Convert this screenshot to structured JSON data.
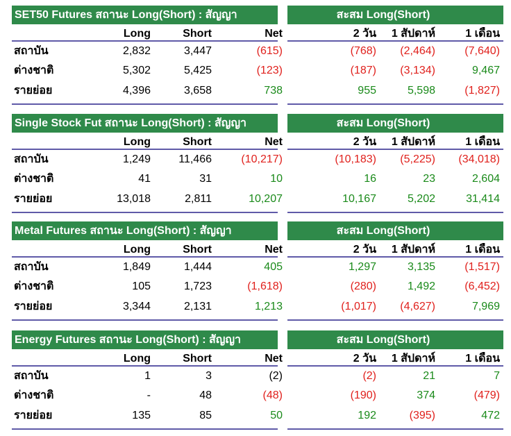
{
  "columns": {
    "long": "Long",
    "short": "Short",
    "net": "Net",
    "w2": "2 วัน",
    "w1": "1 สัปดาห์",
    "m1": "1 เดือน"
  },
  "accum_title": "สะสม Long(Short)",
  "sections": [
    {
      "title": "SET50 Futures สถานะ Long(Short) : สัญญา",
      "rows": [
        {
          "label": "สถาบัน",
          "long": "2,832",
          "short": "3,447",
          "net": "(615)",
          "w2": "(768)",
          "w1": "(2,464)",
          "m1": "(7,640)"
        },
        {
          "label": "ต่างชาติ",
          "long": "5,302",
          "short": "5,425",
          "net": "(123)",
          "w2": "(187)",
          "w1": "(3,134)",
          "m1": "9,467"
        },
        {
          "label": "รายย่อย",
          "long": "4,396",
          "short": "3,658",
          "net": "738",
          "w2": "955",
          "w1": "5,598",
          "m1": "(1,827)"
        }
      ]
    },
    {
      "title": "Single Stock Fut สถานะ Long(Short) : สัญญา",
      "rows": [
        {
          "label": "สถาบัน",
          "long": "1,249",
          "short": "11,466",
          "net": "(10,217)",
          "w2": "(10,183)",
          "w1": "(5,225)",
          "m1": "(34,018)"
        },
        {
          "label": "ต่างชาติ",
          "long": "41",
          "short": "31",
          "net": "10",
          "w2": "16",
          "w1": "23",
          "m1": "2,604"
        },
        {
          "label": "รายย่อย",
          "long": "13,018",
          "short": "2,811",
          "net": "10,207",
          "w2": "10,167",
          "w1": "5,202",
          "m1": "31,414"
        }
      ]
    },
    {
      "title": "Metal Futures สถานะ Long(Short) : สัญญา",
      "rows": [
        {
          "label": "สถาบัน",
          "long": "1,849",
          "short": "1,444",
          "net": "405",
          "w2": "1,297",
          "w1": "3,135",
          "m1": "(1,517)"
        },
        {
          "label": "ต่างชาติ",
          "long": "105",
          "short": "1,723",
          "net": "(1,618)",
          "w2": "(280)",
          "w1": "1,492",
          "m1": "(6,452)"
        },
        {
          "label": "รายย่อย",
          "long": "3,344",
          "short": "2,131",
          "net": "1,213",
          "w2": "(1,017)",
          "w1": "(4,627)",
          "m1": "7,969"
        }
      ]
    },
    {
      "title": "Energy Futures สถานะ Long(Short) : สัญญา",
      "rows": [
        {
          "label": "สถาบัน",
          "long": "1",
          "short": "3",
          "net": "(2)",
          "net_color": "neu",
          "w2": "(2)",
          "w1": "21",
          "m1": "7"
        },
        {
          "label": "ต่างชาติ",
          "long": "-",
          "short": "48",
          "net": "(48)",
          "w2": "(190)",
          "w1": "374",
          "m1": "(479)"
        },
        {
          "label": "รายย่อย",
          "long": "135",
          "short": "85",
          "net": "50",
          "w2": "192",
          "w1": "(395)",
          "m1": "472"
        }
      ]
    }
  ]
}
